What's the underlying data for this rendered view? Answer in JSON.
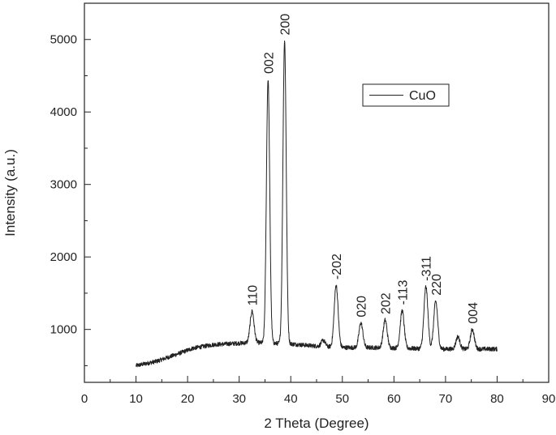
{
  "chart_data": {
    "type": "line",
    "title": "",
    "xlabel": "2 Theta (Degree)",
    "ylabel": "Intensity (a.u.)",
    "xlim": [
      0,
      90
    ],
    "ylim": [
      270,
      5500
    ],
    "x_ticks": [
      0,
      10,
      20,
      30,
      40,
      50,
      60,
      70,
      80,
      90
    ],
    "y_ticks": [
      1000,
      2000,
      3000,
      4000,
      5000
    ],
    "grid": false,
    "legend": {
      "position": "top-right",
      "entries": [
        "CuO"
      ]
    },
    "series": [
      {
        "name": "CuO",
        "color": "#222222",
        "baseline": [
          [
            10,
            500
          ],
          [
            14,
            560
          ],
          [
            18,
            660
          ],
          [
            21,
            740
          ],
          [
            25,
            790
          ],
          [
            30,
            810
          ],
          [
            33,
            820
          ],
          [
            36,
            810
          ],
          [
            40,
            800
          ],
          [
            45,
            770
          ],
          [
            50,
            750
          ],
          [
            55,
            750
          ],
          [
            60,
            745
          ],
          [
            65,
            735
          ],
          [
            70,
            730
          ],
          [
            75,
            730
          ],
          [
            80,
            730
          ]
        ],
        "peaks": [
          {
            "label": "110",
            "x": 32.5,
            "y": 1250
          },
          {
            "label": "002",
            "x": 35.6,
            "y": 4450
          },
          {
            "label": "200",
            "x": 38.8,
            "y": 4980
          },
          {
            "label": "-202",
            "x": 48.8,
            "y": 1610
          },
          {
            "label": "020",
            "x": 53.6,
            "y": 1090
          },
          {
            "label": "202",
            "x": 58.3,
            "y": 1130
          },
          {
            "label": "-113",
            "x": 61.6,
            "y": 1260
          },
          {
            "label": "-311",
            "x": 66.2,
            "y": 1590
          },
          {
            "label": "220",
            "x": 68.1,
            "y": 1390
          },
          {
            "label": "004",
            "x": 75.2,
            "y": 1000
          }
        ],
        "minor_peaks": [
          {
            "x": 46.3,
            "y": 850
          },
          {
            "x": 72.4,
            "y": 900
          }
        ]
      }
    ]
  }
}
